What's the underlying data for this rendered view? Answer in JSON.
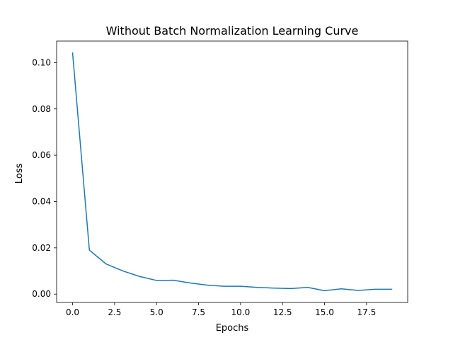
{
  "chart_data": {
    "type": "line",
    "title": "Without Batch Normalization Learning Curve",
    "xlabel": "Epochs",
    "ylabel": "Loss",
    "xlim": [
      -0.95,
      19.95
    ],
    "ylim": [
      -0.0036,
      0.1093
    ],
    "grid": false,
    "x_ticks": [
      0,
      2.5,
      5,
      7.5,
      10,
      12.5,
      15,
      17.5
    ],
    "x_tick_labels": [
      "0.0",
      "2.5",
      "5.0",
      "7.5",
      "10.0",
      "12.5",
      "15.0",
      "17.5"
    ],
    "y_ticks": [
      0.0,
      0.02,
      0.04,
      0.06,
      0.08,
      0.1
    ],
    "y_tick_labels": [
      "0.00",
      "0.02",
      "0.04",
      "0.06",
      "0.08",
      "0.10"
    ],
    "series": [
      {
        "color": "#1f77b4",
        "x": [
          0,
          1,
          2,
          3,
          4,
          5,
          6,
          7,
          8,
          9,
          10,
          11,
          12,
          13,
          14,
          15,
          16,
          17,
          18,
          19
        ],
        "y": [
          0.1042,
          0.019,
          0.013,
          0.01,
          0.0076,
          0.0059,
          0.006,
          0.0048,
          0.0039,
          0.0034,
          0.0034,
          0.0029,
          0.0026,
          0.0024,
          0.0029,
          0.0015,
          0.0023,
          0.0016,
          0.0021,
          0.0021
        ]
      }
    ]
  }
}
